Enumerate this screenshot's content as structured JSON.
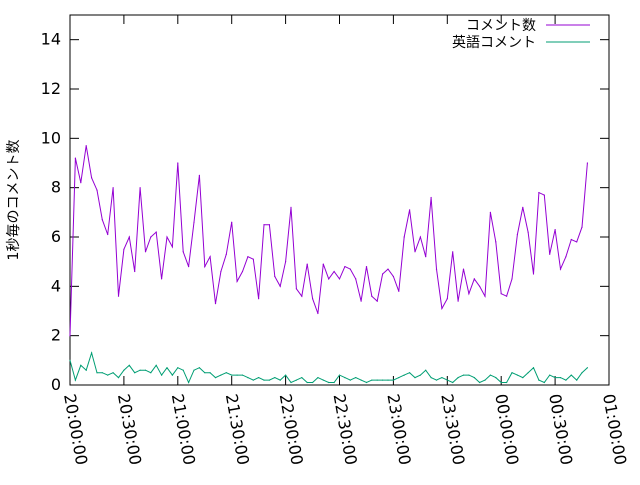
{
  "chart_data": {
    "type": "line",
    "title": "",
    "xlabel": "",
    "ylabel": "1秒毎のコメント数",
    "ylim": [
      0,
      15
    ],
    "yticks": [
      0,
      2,
      4,
      6,
      8,
      10,
      12,
      14
    ],
    "ytick_labels": [
      "0",
      "2",
      "4",
      "6",
      "8",
      "10",
      "12",
      "14"
    ],
    "xlim": [
      "20:00:00",
      "25:00:00"
    ],
    "xticks": [
      "20:00:00",
      "20:30:00",
      "21:00:00",
      "21:30:00",
      "22:00:00",
      "22:30:00",
      "23:00:00",
      "23:30:00",
      "24:00:00",
      "24:30:00",
      "25:00:00"
    ],
    "xtick_labels": [
      "20:00:00",
      "20:30:00",
      "21:00:00",
      "21:30:00",
      "22:00:00",
      "22:30:00",
      "23:00:00",
      "23:30:00",
      "00:00:00",
      "00:30:00",
      "01:00:00"
    ],
    "grid": false,
    "legend_position": "top-right",
    "series": [
      {
        "name": "コメント数",
        "color": "#9400d3",
        "x": [
          "20:00:00",
          "20:03:00",
          "20:06:00",
          "20:09:00",
          "20:12:00",
          "20:15:00",
          "20:18:00",
          "20:21:00",
          "20:24:00",
          "20:27:00",
          "20:30:00",
          "20:33:00",
          "20:36:00",
          "20:39:00",
          "20:42:00",
          "20:45:00",
          "20:48:00",
          "20:51:00",
          "20:54:00",
          "20:57:00",
          "21:00:00",
          "21:03:00",
          "21:06:00",
          "21:09:00",
          "21:12:00",
          "21:15:00",
          "21:18:00",
          "21:21:00",
          "21:24:00",
          "21:27:00",
          "21:30:00",
          "21:33:00",
          "21:36:00",
          "21:39:00",
          "21:42:00",
          "21:45:00",
          "21:48:00",
          "21:51:00",
          "21:54:00",
          "21:57:00",
          "22:00:00",
          "22:03:00",
          "22:06:00",
          "22:09:00",
          "22:12:00",
          "22:15:00",
          "22:18:00",
          "22:21:00",
          "22:24:00",
          "22:27:00",
          "22:30:00",
          "22:33:00",
          "22:36:00",
          "22:39:00",
          "22:42:00",
          "22:45:00",
          "22:48:00",
          "22:51:00",
          "22:54:00",
          "22:57:00",
          "23:00:00",
          "23:03:00",
          "23:06:00",
          "23:09:00",
          "23:12:00",
          "23:15:00",
          "23:18:00",
          "23:21:00",
          "23:24:00",
          "23:27:00",
          "23:30:00",
          "23:33:00",
          "23:36:00",
          "23:39:00",
          "23:42:00",
          "23:45:00",
          "23:48:00",
          "23:51:00",
          "23:54:00",
          "23:57:00",
          "24:00:00",
          "24:03:00",
          "24:06:00",
          "24:09:00",
          "24:12:00",
          "24:15:00",
          "24:18:00",
          "24:21:00",
          "24:24:00",
          "24:27:00",
          "24:30:00",
          "24:33:00",
          "24:36:00",
          "24:39:00",
          "24:42:00",
          "24:45:00",
          "24:48:00"
        ],
        "values": [
          2.0,
          9.2,
          8.2,
          9.7,
          8.4,
          7.9,
          6.7,
          6.1,
          8.0,
          3.6,
          5.5,
          6.0,
          4.6,
          8.0,
          5.4,
          6.0,
          6.2,
          4.3,
          6.0,
          5.6,
          9.0,
          5.4,
          4.8,
          6.6,
          8.5,
          4.8,
          5.2,
          3.3,
          4.6,
          5.3,
          6.6,
          4.2,
          4.6,
          5.2,
          5.1,
          3.5,
          6.5,
          6.5,
          4.4,
          4.0,
          5.0,
          7.2,
          3.9,
          3.6,
          4.9,
          3.5,
          2.9,
          4.9,
          4.3,
          4.6,
          4.3,
          4.8,
          4.7,
          4.3,
          3.4,
          4.8,
          3.6,
          3.4,
          4.5,
          4.7,
          4.4,
          3.8,
          6.0,
          7.1,
          5.4,
          6.0,
          5.2,
          7.6,
          4.7,
          3.1,
          3.5,
          5.4,
          3.4,
          4.7,
          3.7,
          4.3,
          4.0,
          3.6,
          7.0,
          5.8,
          3.7,
          3.6,
          4.3,
          6.1,
          7.2,
          6.2,
          4.5,
          7.8,
          7.7,
          5.3,
          6.3,
          4.7,
          5.2,
          5.9,
          5.8,
          6.4,
          9.0
        ]
      },
      {
        "name": "英語コメント",
        "color": "#009e73",
        "x": [
          "20:00:00",
          "20:03:00",
          "20:06:00",
          "20:09:00",
          "20:12:00",
          "20:15:00",
          "20:18:00",
          "20:21:00",
          "20:24:00",
          "20:27:00",
          "20:30:00",
          "20:33:00",
          "20:36:00",
          "20:39:00",
          "20:42:00",
          "20:45:00",
          "20:48:00",
          "20:51:00",
          "20:54:00",
          "20:57:00",
          "21:00:00",
          "21:03:00",
          "21:06:00",
          "21:09:00",
          "21:12:00",
          "21:15:00",
          "21:18:00",
          "21:21:00",
          "21:24:00",
          "21:27:00",
          "21:30:00",
          "21:33:00",
          "21:36:00",
          "21:39:00",
          "21:42:00",
          "21:45:00",
          "21:48:00",
          "21:51:00",
          "21:54:00",
          "21:57:00",
          "22:00:00",
          "22:03:00",
          "22:06:00",
          "22:09:00",
          "22:12:00",
          "22:15:00",
          "22:18:00",
          "22:21:00",
          "22:24:00",
          "22:27:00",
          "22:30:00",
          "22:33:00",
          "22:36:00",
          "22:39:00",
          "22:42:00",
          "22:45:00",
          "22:48:00",
          "22:51:00",
          "22:54:00",
          "22:57:00",
          "23:00:00",
          "23:03:00",
          "23:06:00",
          "23:09:00",
          "23:12:00",
          "23:15:00",
          "23:18:00",
          "23:21:00",
          "23:24:00",
          "23:27:00",
          "23:30:00",
          "23:33:00",
          "23:36:00",
          "23:39:00",
          "23:42:00",
          "23:45:00",
          "23:48:00",
          "23:51:00",
          "23:54:00",
          "23:57:00",
          "24:00:00",
          "24:03:00",
          "24:06:00",
          "24:09:00",
          "24:12:00",
          "24:15:00",
          "24:18:00",
          "24:21:00",
          "24:24:00",
          "24:27:00",
          "24:30:00",
          "24:33:00",
          "24:36:00",
          "24:39:00",
          "24:42:00",
          "24:45:00",
          "24:48:00"
        ],
        "values": [
          1.0,
          0.2,
          0.8,
          0.6,
          1.3,
          0.5,
          0.5,
          0.4,
          0.5,
          0.3,
          0.6,
          0.8,
          0.5,
          0.6,
          0.6,
          0.5,
          0.8,
          0.4,
          0.7,
          0.4,
          0.7,
          0.6,
          0.1,
          0.6,
          0.7,
          0.5,
          0.5,
          0.3,
          0.4,
          0.5,
          0.4,
          0.4,
          0.4,
          0.3,
          0.2,
          0.3,
          0.2,
          0.2,
          0.3,
          0.2,
          0.4,
          0.1,
          0.2,
          0.3,
          0.1,
          0.1,
          0.3,
          0.2,
          0.1,
          0.1,
          0.4,
          0.3,
          0.2,
          0.3,
          0.2,
          0.1,
          0.2,
          0.2,
          0.2,
          0.2,
          0.2,
          0.3,
          0.4,
          0.5,
          0.3,
          0.4,
          0.6,
          0.3,
          0.2,
          0.3,
          0.2,
          0.1,
          0.3,
          0.4,
          0.4,
          0.3,
          0.1,
          0.2,
          0.4,
          0.3,
          0.1,
          0.1,
          0.5,
          0.4,
          0.3,
          0.5,
          0.7,
          0.2,
          0.1,
          0.4,
          0.3,
          0.3,
          0.2,
          0.4,
          0.2,
          0.5,
          0.7
        ]
      }
    ]
  }
}
